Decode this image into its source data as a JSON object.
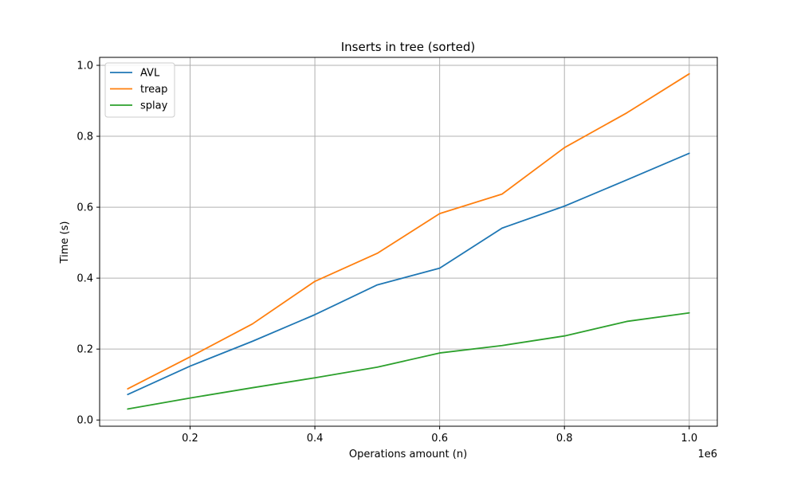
{
  "chart_data": {
    "type": "line",
    "title": "Inserts in tree (sorted)",
    "xlabel": "Operations amount (n)",
    "ylabel": "Time (s)",
    "x_offset_label": "1e6",
    "x": [
      100000,
      200000,
      300000,
      400000,
      500000,
      600000,
      700000,
      800000,
      900000,
      1000000
    ],
    "xlim": [
      55000,
      1045000
    ],
    "ylim": [
      -0.0175,
      1.0225
    ],
    "x_ticks": [
      200000,
      400000,
      600000,
      800000,
      1000000
    ],
    "x_tick_labels": [
      "0.2",
      "0.4",
      "0.6",
      "0.8",
      "1.0"
    ],
    "y_ticks": [
      0.0,
      0.2,
      0.4,
      0.6,
      0.8,
      1.0
    ],
    "y_tick_labels": [
      "0.0",
      "0.2",
      "0.4",
      "0.6",
      "0.8",
      "1.0"
    ],
    "grid": true,
    "legend_position": "top-left",
    "series": [
      {
        "name": "AVL",
        "color": "#1f77b4",
        "values": [
          0.072,
          0.152,
          0.222,
          0.297,
          0.381,
          0.428,
          0.541,
          0.603,
          0.677,
          0.752
        ]
      },
      {
        "name": "treap",
        "color": "#ff7f0e",
        "values": [
          0.088,
          0.178,
          0.271,
          0.391,
          0.47,
          0.582,
          0.637,
          0.768,
          0.866,
          0.976
        ]
      },
      {
        "name": "splay",
        "color": "#2ca02c",
        "values": [
          0.031,
          0.062,
          0.091,
          0.119,
          0.149,
          0.189,
          0.21,
          0.237,
          0.278,
          0.302
        ]
      }
    ]
  }
}
